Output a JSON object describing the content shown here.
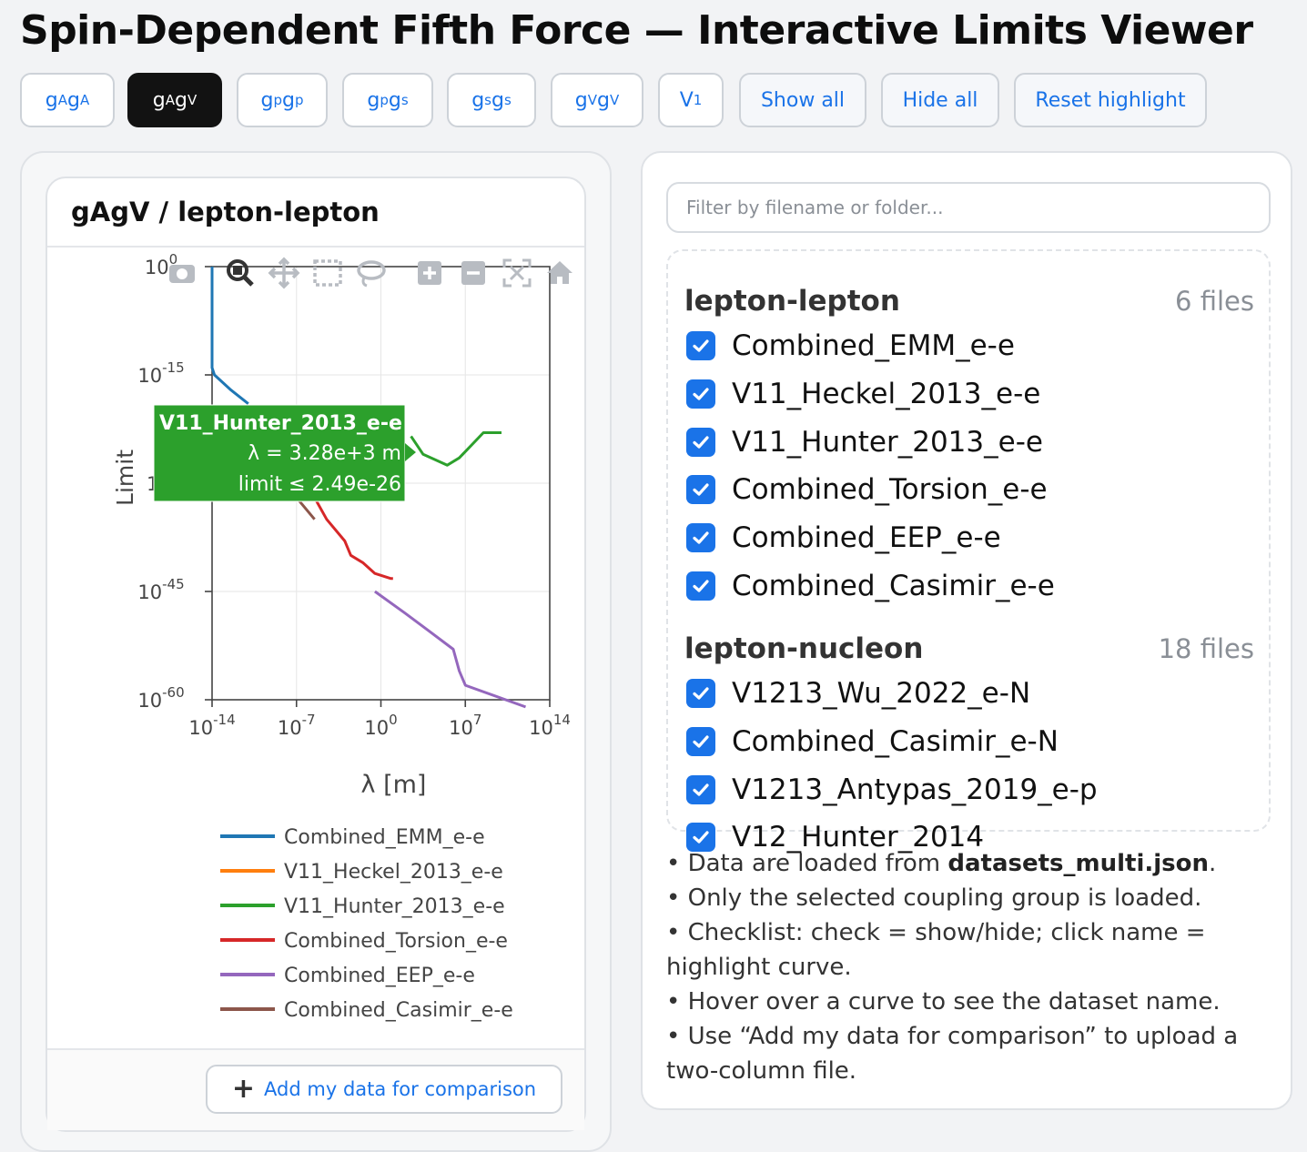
{
  "page_title": "Spin-Dependent Fifth Force — Interactive Limits Viewer",
  "toolbar": {
    "couplings": [
      {
        "main": "g",
        "sub": "A",
        "main2": "g",
        "sub2": "A",
        "active": false
      },
      {
        "main": "g",
        "sub": "A",
        "main2": "g",
        "sub2": "V",
        "active": true
      },
      {
        "main": "g",
        "sub": "p",
        "main2": "g",
        "sub2": "p",
        "active": false
      },
      {
        "main": "g",
        "sub": "p",
        "main2": "g",
        "sub2": "s",
        "active": false
      },
      {
        "main": "g",
        "sub": "s",
        "main2": "g",
        "sub2": "s",
        "active": false
      },
      {
        "main": "g",
        "sub": "V",
        "main2": "g",
        "sub2": "V",
        "active": false
      },
      {
        "main": "V",
        "sub": "1",
        "main2": "",
        "sub2": "",
        "active": false
      }
    ],
    "show_all": "Show all",
    "hide_all": "Hide all",
    "reset_highlight": "Reset highlight"
  },
  "plot": {
    "title": "gAgV / lepton-lepton",
    "add_button": "Add my data for comparison",
    "tooltip": {
      "name": "V11_Hunter_2013_e-e",
      "line1": "λ = 3.28e+3 m",
      "line2": "limit ≤ 2.49e-26",
      "color": "#2ca02c"
    },
    "modebar_icons": [
      "camera-icon",
      "zoom-icon",
      "pan-icon",
      "box-select-icon",
      "lasso-icon",
      "zoom-in-icon",
      "zoom-out-icon",
      "autoscale-icon",
      "reset-axes-icon"
    ]
  },
  "chart_data": {
    "type": "line",
    "title": "",
    "xlabel": "λ [m]",
    "ylabel": "Limit",
    "x_scale": "log",
    "y_scale": "log",
    "xlim_exp": [
      -14,
      14
    ],
    "ylim_exp": [
      -60,
      0
    ],
    "x_ticks": [
      {
        "base": "10",
        "exp": "-14",
        "value": -14
      },
      {
        "base": "10",
        "exp": "-7",
        "value": -7
      },
      {
        "base": "10",
        "exp": "0",
        "value": 0
      },
      {
        "base": "10",
        "exp": "7",
        "value": 7
      },
      {
        "base": "10",
        "exp": "14",
        "value": 14
      }
    ],
    "y_ticks": [
      {
        "base": "10",
        "exp": "0",
        "value": 0
      },
      {
        "base": "10",
        "exp": "-15",
        "value": -15
      },
      {
        "base": "10",
        "exp": "-45",
        "value": -45
      },
      {
        "base": "10",
        "exp": "-60",
        "value": -60
      }
    ],
    "grid": true,
    "legend_position": "bottom",
    "series": [
      {
        "name": "Combined_EMM_e-e",
        "color": "#1f77b4",
        "log_x": [
          -14,
          -14,
          -13.8,
          -12.5,
          -11
        ],
        "log_y": [
          0,
          -14,
          -15,
          -17,
          -19
        ]
      },
      {
        "name": "V11_Heckel_2013_e-e",
        "color": "#ff7f0e",
        "log_x": [],
        "log_y": []
      },
      {
        "name": "V11_Hunter_2013_e-e",
        "color": "#2ca02c",
        "log_x": [
          2.5,
          3.5,
          5.5,
          6.5,
          8.5,
          10
        ],
        "log_y": [
          -23.5,
          -26,
          -27.5,
          -26.5,
          -23,
          -23
        ]
      },
      {
        "name": "Combined_Torsion_e-e",
        "color": "#d62728",
        "log_x": [
          -6,
          -5.5,
          -4.5,
          -3,
          -2.5,
          -1.5,
          -0.5,
          0.8,
          1
        ],
        "log_y": [
          -30,
          -32,
          -35,
          -38,
          -40,
          -41,
          -42.5,
          -43.2,
          -43.2
        ]
      },
      {
        "name": "Combined_EEP_e-e",
        "color": "#9467bd",
        "log_x": [
          -0.5,
          2,
          4,
          6,
          6.5,
          7,
          12
        ],
        "log_y": [
          -45,
          -48,
          -50.5,
          -53,
          -56,
          -58,
          -61
        ]
      },
      {
        "name": "Combined_Casimir_e-e",
        "color": "#8c564b",
        "log_x": [
          -8,
          -6.5,
          -5.5
        ],
        "log_y": [
          -30,
          -33,
          -35
        ]
      }
    ]
  },
  "file_panel": {
    "filter_placeholder": "Filter by filename or folder...",
    "groups": [
      {
        "name": "lepton-lepton",
        "count": "6 files",
        "files": [
          "Combined_EMM_e-e",
          "V11_Heckel_2013_e-e",
          "V11_Hunter_2013_e-e",
          "Combined_Torsion_e-e",
          "Combined_EEP_e-e",
          "Combined_Casimir_e-e"
        ]
      },
      {
        "name": "lepton-nucleon",
        "count": "18 files",
        "files": [
          "V1213_Wu_2022_e-N",
          "Combined_Casimir_e-N",
          "V1213_Antypas_2019_e-p",
          "V12_Hunter_2014"
        ]
      }
    ]
  },
  "notes": {
    "line1_pre": "• Data are loaded from ",
    "line1_bold": "datasets_multi.json",
    "line1_post": ".",
    "line2": "• Only the selected coupling group is loaded.",
    "line3": "• Checklist: check = show/hide; click name = highlight curve.",
    "line4": "• Hover over a curve to see the dataset name.",
    "line5": "• Use “Add my data for comparison” to upload a two-column file."
  }
}
